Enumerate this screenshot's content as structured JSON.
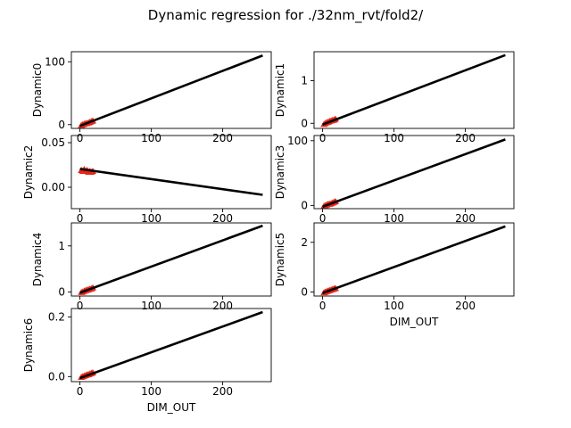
{
  "title": "Dynamic regression for ./32nm_rvt/fold2/",
  "colors": {
    "fit_line": "#000000",
    "samples": "#e8251a",
    "axes": "#000000"
  },
  "chart_data": [
    {
      "type": "line",
      "ylabel": "Dynamic0",
      "xlabel": "",
      "xlim": [
        -12,
        268
      ],
      "ylim": [
        -6,
        116
      ],
      "xticks": [
        0,
        100,
        200
      ],
      "yticks": [
        0,
        100
      ],
      "xtick_labels": [
        "0",
        "100",
        "200"
      ],
      "ytick_labels": [
        "0",
        "100"
      ],
      "fit_line": {
        "x": [
          0,
          256
        ],
        "y": [
          -2,
          110
        ]
      },
      "samples": {
        "x": [
          2,
          4,
          6,
          8,
          10,
          12,
          14,
          16,
          18
        ],
        "y": [
          -1,
          0,
          1,
          2,
          2,
          3,
          4,
          5,
          6
        ]
      }
    },
    {
      "type": "line",
      "ylabel": "Dynamic1",
      "xlabel": "",
      "xlim": [
        -12,
        268
      ],
      "ylim": [
        -0.12,
        1.68
      ],
      "xticks": [
        0,
        100,
        200
      ],
      "yticks": [
        0,
        1
      ],
      "xtick_labels": [
        "0",
        "100",
        "200"
      ],
      "ytick_labels": [
        "0",
        "1"
      ],
      "fit_line": {
        "x": [
          0,
          256
        ],
        "y": [
          -0.03,
          1.6
        ]
      },
      "samples": {
        "x": [
          2,
          4,
          6,
          8,
          10,
          12,
          14,
          16,
          18
        ],
        "y": [
          -0.02,
          0.0,
          0.02,
          0.03,
          0.05,
          0.06,
          0.07,
          0.08,
          0.1
        ]
      }
    },
    {
      "type": "line",
      "ylabel": "Dynamic2",
      "xlabel": "",
      "xlim": [
        -12,
        268
      ],
      "ylim": [
        -0.024,
        0.058
      ],
      "xticks": [
        0,
        100,
        200
      ],
      "yticks": [
        0.0,
        0.05
      ],
      "xtick_labels": [
        "0",
        "100",
        "200"
      ],
      "ytick_labels": [
        "0.00",
        "0.05"
      ],
      "fit_line": {
        "x": [
          0,
          256
        ],
        "y": [
          0.0205,
          -0.0085
        ]
      },
      "samples": {
        "x": [
          2,
          4,
          6,
          8,
          10,
          12,
          14,
          16,
          18
        ],
        "y": [
          0.019,
          0.018,
          0.02,
          0.018,
          0.019,
          0.017,
          0.018,
          0.017,
          0.018
        ]
      }
    },
    {
      "type": "line",
      "ylabel": "Dynamic3",
      "xlabel": "",
      "xlim": [
        -12,
        268
      ],
      "ylim": [
        -5,
        108
      ],
      "xticks": [
        0,
        100,
        200
      ],
      "yticks": [
        0,
        100
      ],
      "xtick_labels": [
        "0",
        "100",
        "200"
      ],
      "ytick_labels": [
        "0",
        "100"
      ],
      "fit_line": {
        "x": [
          0,
          256
        ],
        "y": [
          -2,
          102
        ]
      },
      "samples": {
        "x": [
          2,
          4,
          6,
          8,
          10,
          12,
          14,
          16,
          18
        ],
        "y": [
          -1,
          0,
          1,
          2,
          2,
          3,
          4,
          5,
          6
        ]
      }
    },
    {
      "type": "line",
      "ylabel": "Dynamic4",
      "xlabel": "",
      "xlim": [
        -12,
        268
      ],
      "ylim": [
        -0.09,
        1.5
      ],
      "xticks": [
        0,
        100,
        200
      ],
      "yticks": [
        0,
        1
      ],
      "xtick_labels": [
        "0",
        "100",
        "200"
      ],
      "ytick_labels": [
        "0",
        "1"
      ],
      "fit_line": {
        "x": [
          0,
          256
        ],
        "y": [
          -0.02,
          1.44
        ]
      },
      "samples": {
        "x": [
          2,
          4,
          6,
          8,
          10,
          12,
          14,
          16,
          18
        ],
        "y": [
          -0.01,
          0.0,
          0.02,
          0.03,
          0.04,
          0.05,
          0.06,
          0.07,
          0.09
        ]
      }
    },
    {
      "type": "line",
      "ylabel": "Dynamic5",
      "xlabel": "DIM_OUT",
      "xlim": [
        -12,
        268
      ],
      "ylim": [
        -0.16,
        2.78
      ],
      "xticks": [
        0,
        100,
        200
      ],
      "yticks": [
        0,
        2
      ],
      "xtick_labels": [
        "0",
        "100",
        "200"
      ],
      "ytick_labels": [
        "0",
        "2"
      ],
      "fit_line": {
        "x": [
          0,
          256
        ],
        "y": [
          -0.04,
          2.64
        ]
      },
      "samples": {
        "x": [
          2,
          4,
          6,
          8,
          10,
          12,
          14,
          16,
          18
        ],
        "y": [
          -0.02,
          0.0,
          0.03,
          0.05,
          0.07,
          0.09,
          0.11,
          0.13,
          0.15
        ]
      }
    },
    {
      "type": "line",
      "ylabel": "Dynamic6",
      "xlabel": "DIM_OUT",
      "xlim": [
        -12,
        268
      ],
      "ylim": [
        -0.017,
        0.228
      ],
      "xticks": [
        0,
        100,
        200
      ],
      "yticks": [
        0.0,
        0.2
      ],
      "xtick_labels": [
        "0",
        "100",
        "200"
      ],
      "ytick_labels": [
        "0.0",
        "0.2"
      ],
      "fit_line": {
        "x": [
          0,
          256
        ],
        "y": [
          -0.005,
          0.216
        ]
      },
      "samples": {
        "x": [
          2,
          4,
          6,
          8,
          10,
          12,
          14,
          16,
          18
        ],
        "y": [
          -0.002,
          0.0,
          0.002,
          0.004,
          0.006,
          0.007,
          0.009,
          0.011,
          0.013
        ]
      }
    }
  ]
}
